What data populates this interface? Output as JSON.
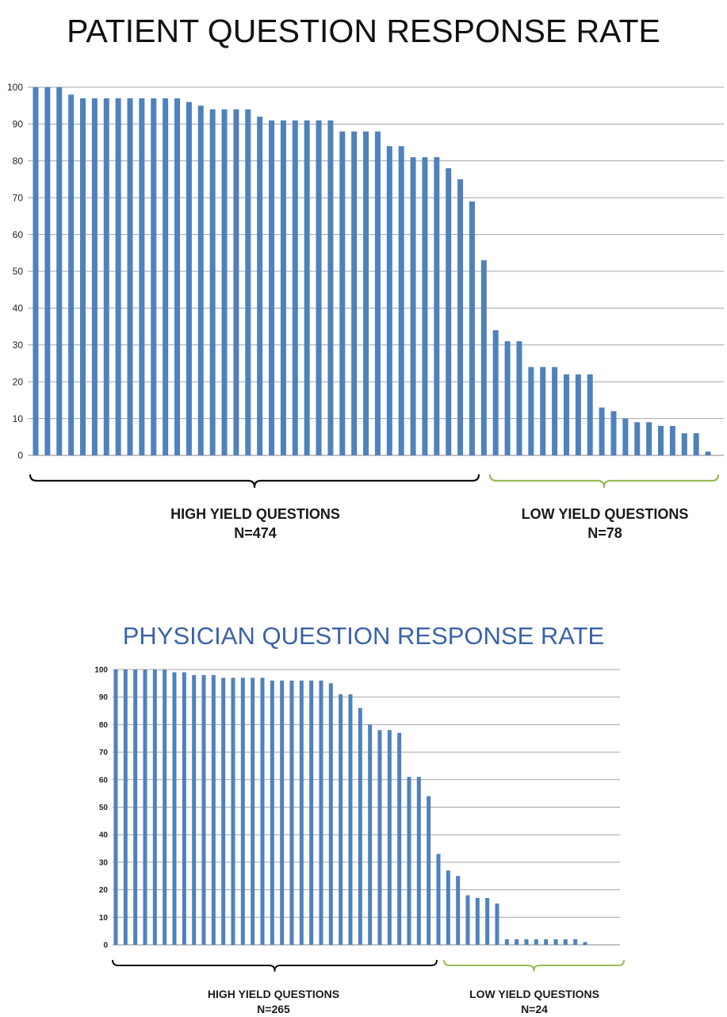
{
  "chart_data": [
    {
      "type": "bar",
      "title": "PATIENT QUESTION RESPONSE RATE",
      "ylim": [
        0,
        100
      ],
      "yticks": [
        0,
        10,
        20,
        30,
        40,
        50,
        60,
        70,
        80,
        90,
        100
      ],
      "grid": true,
      "bar_color": "#4f81bd",
      "values": [
        100,
        100,
        100,
        98,
        97,
        97,
        97,
        97,
        97,
        97,
        97,
        97,
        97,
        96,
        95,
        94,
        94,
        94,
        94,
        92,
        91,
        91,
        91,
        91,
        91,
        91,
        88,
        88,
        88,
        88,
        84,
        84,
        81,
        81,
        81,
        78,
        75,
        69,
        53,
        34,
        31,
        31,
        24,
        24,
        24,
        22,
        22,
        22,
        13,
        12,
        10,
        9,
        9,
        8,
        8,
        6,
        6,
        1
      ],
      "groups": [
        {
          "label": "HIGH YIELD QUESTIONS",
          "n": "N=474",
          "bracket_color": "#111111"
        },
        {
          "label": "LOW YIELD QUESTIONS",
          "n": "N=78",
          "bracket_color": "#9bbb59"
        }
      ]
    },
    {
      "type": "bar",
      "title": "PHYSICIAN QUESTION RESPONSE RATE",
      "ylim": [
        0,
        100
      ],
      "yticks": [
        0,
        10,
        20,
        30,
        40,
        50,
        60,
        70,
        80,
        90,
        100
      ],
      "grid": true,
      "bar_color": "#4f81bd",
      "values": [
        100,
        100,
        100,
        100,
        100,
        100,
        99,
        99,
        98,
        98,
        98,
        97,
        97,
        97,
        97,
        97,
        96,
        96,
        96,
        96,
        96,
        96,
        95,
        91,
        91,
        86,
        80,
        78,
        78,
        77,
        61,
        61,
        54,
        33,
        27,
        25,
        18,
        17,
        17,
        15,
        2,
        2,
        2,
        2,
        2,
        2,
        2,
        2,
        1
      ],
      "groups": [
        {
          "label": "HIGH YIELD QUESTIONS",
          "n": "N=265",
          "bracket_color": "#111111"
        },
        {
          "label": "LOW YIELD QUESTIONS",
          "n": "N=24",
          "bracket_color": "#9bbb59"
        }
      ]
    }
  ]
}
